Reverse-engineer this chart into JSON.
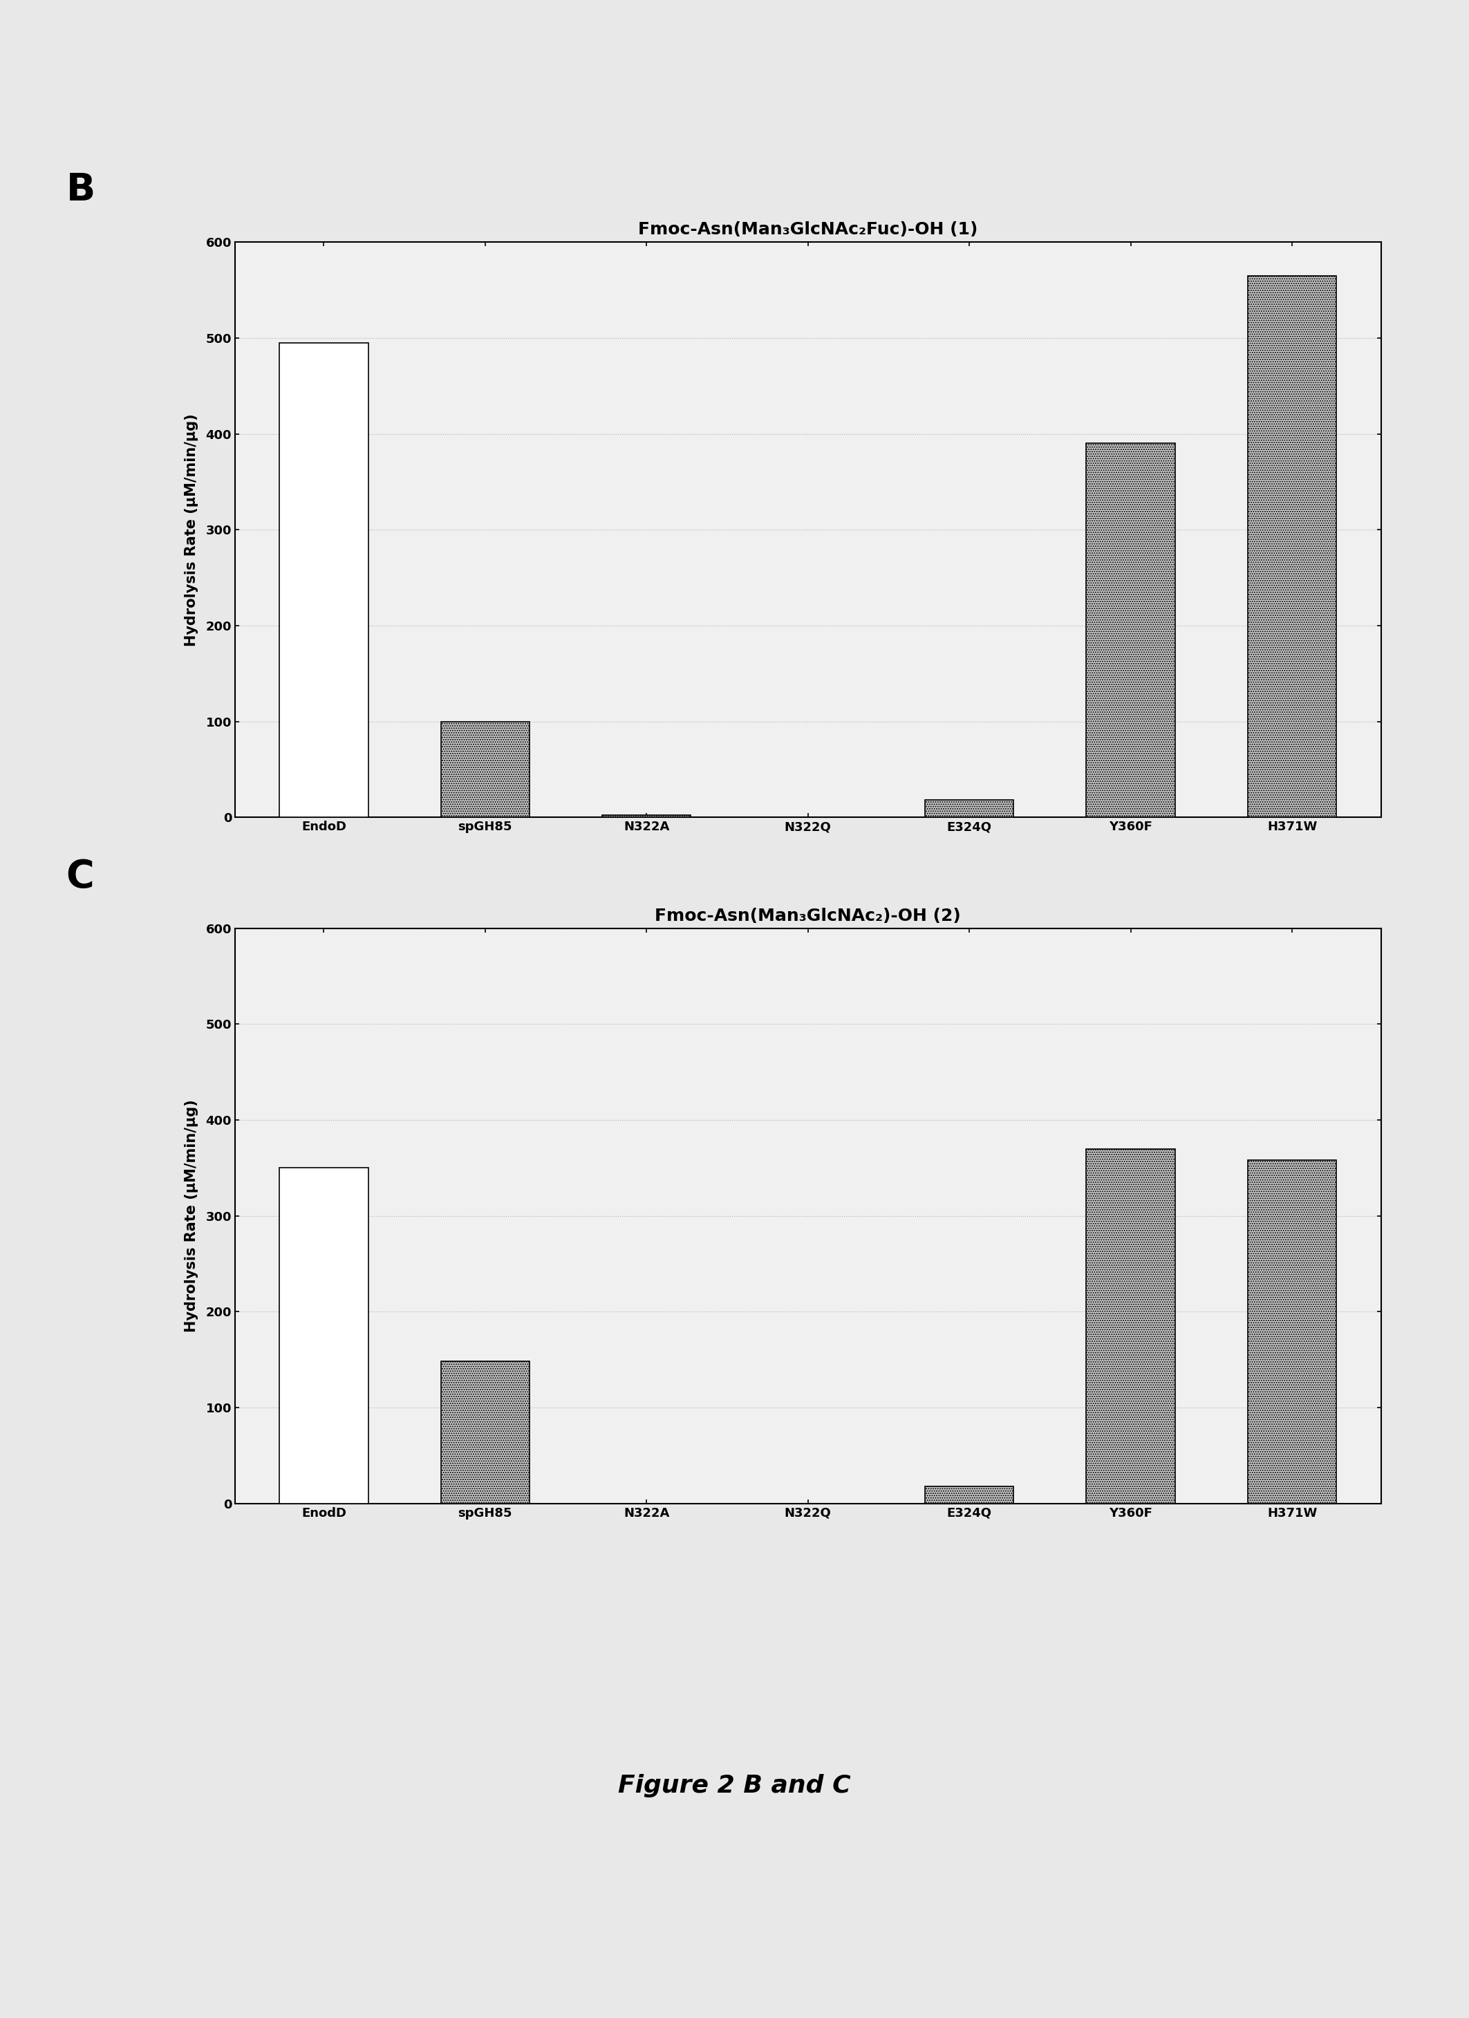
{
  "panel_B": {
    "title": "Fmoc-Asn(Man₃GlcNAc₂Fuc)-OH (1)",
    "categories": [
      "EndoD",
      "spGH85",
      "N322A",
      "N322Q",
      "E324Q",
      "Y360F",
      "H371W"
    ],
    "values": [
      495,
      100,
      2,
      0,
      18,
      390,
      565
    ],
    "bar_colors": [
      "white",
      "#c8c8c8",
      "#c8c8c8",
      "#c8c8c8",
      "#c8c8c8",
      "#c8c8c8",
      "#c8c8c8"
    ],
    "bar_edgecolors": [
      "black",
      "black",
      "black",
      "black",
      "black",
      "black",
      "black"
    ],
    "bar_hatches": [
      "",
      ".....",
      ".....",
      ".....",
      ".....",
      ".....",
      "....."
    ],
    "ylabel": "Hydrolysis Rate (μM/min/μg)",
    "ylim": [
      0,
      600
    ],
    "yticks": [
      0,
      100,
      200,
      300,
      400,
      500,
      600
    ]
  },
  "panel_C": {
    "title": "Fmoc-Asn(Man₃GlcNAc₂)-OH (2)",
    "categories": [
      "EnodD",
      "spGH85",
      "N322A",
      "N322Q",
      "E324Q",
      "Y360F",
      "H371W"
    ],
    "values": [
      350,
      148,
      0,
      0,
      18,
      370,
      358
    ],
    "bar_colors": [
      "white",
      "#c8c8c8",
      "#c8c8c8",
      "#c8c8c8",
      "#c8c8c8",
      "#c8c8c8",
      "#c8c8c8"
    ],
    "bar_edgecolors": [
      "black",
      "black",
      "black",
      "black",
      "black",
      "black",
      "black"
    ],
    "bar_hatches": [
      "",
      ".....",
      ".....",
      ".....",
      ".....",
      ".....",
      "....."
    ],
    "ylabel": "Hydrolysis Rate (μM/min/μg)",
    "ylim": [
      0,
      600
    ],
    "yticks": [
      0,
      100,
      200,
      300,
      400,
      500,
      600
    ]
  },
  "panel_B_label": "B",
  "panel_C_label": "C",
  "figure_caption": "Figure 2 B and C",
  "background_color": "#e8e8e8",
  "plot_bg_color": "#f0f0f0",
  "title_fontsize": 18,
  "label_fontsize": 15,
  "tick_fontsize": 13,
  "panel_label_fontsize": 40,
  "caption_fontsize": 26
}
